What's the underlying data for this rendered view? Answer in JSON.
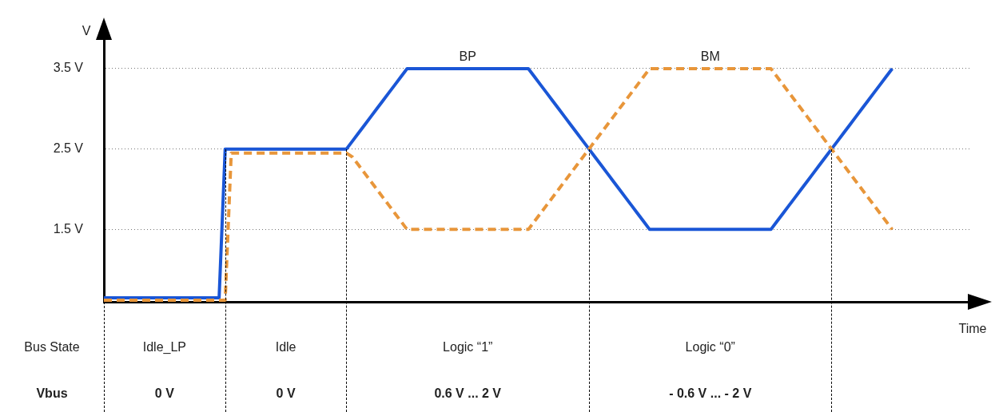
{
  "chart_data": {
    "type": "line",
    "xlabel": "Time",
    "ylabel": "V",
    "categories": [
      null,
      null,
      null,
      null,
      null,
      null,
      null,
      null,
      null,
      null,
      null,
      null,
      null,
      null,
      null,
      null,
      null,
      null,
      null,
      null,
      null,
      null,
      null,
      null,
      null,
      null,
      null,
      null,
      null,
      null,
      null,
      null,
      null,
      null,
      null,
      null,
      null,
      null,
      null,
      null,
      null,
      null,
      null,
      null,
      null,
      null,
      null,
      null,
      null,
      null,
      null,
      null,
      null,
      null,
      null,
      null,
      null,
      null,
      null,
      null,
      null,
      null,
      null,
      null,
      null,
      null,
      null,
      null,
      null,
      null,
      null,
      null,
      null,
      null,
      null,
      null,
      null,
      null,
      null,
      null,
      null,
      null,
      null,
      null,
      null,
      null,
      null,
      null,
      null,
      null,
      null,
      null,
      null,
      null,
      null,
      null,
      null,
      null,
      null,
      null,
      null,
      null,
      null,
      null,
      null,
      null,
      null,
      null,
      null,
      null,
      null,
      null,
      null,
      null,
      null,
      null,
      null,
      null,
      null,
      null,
      null,
      null,
      null,
      null,
      null,
      null,
      null,
      null,
      null,
      null,
      null,
      null,
      null,
      null,
      null,
      null,
      null,
      null,
      null,
      null,
      null,
      null,
      null,
      null
    ],
    "series": [
      {
        "name": "BP",
        "color": "#1a56d6",
        "line_style": "solid",
        "values": [
          0.65,
          0.65,
          0.65,
          0.65,
          0.65,
          0.65,
          0.65,
          0.65,
          0.65,
          0.65,
          0.65,
          0.65,
          0.65,
          0.65,
          0.65,
          0.65,
          0.65,
          0.65,
          0.65,
          0.65,
          2.5,
          2.5,
          2.5,
          2.5,
          2.5,
          2.5,
          2.5,
          2.5,
          2.5,
          2.5,
          2.5,
          2.5,
          2.5,
          2.5,
          2.5,
          2.5,
          2.5,
          2.5,
          2.5,
          2.5,
          2.5,
          2.6,
          2.7,
          2.8,
          2.9,
          3.0,
          3.1,
          3.2,
          3.3,
          3.4,
          3.5,
          3.5,
          3.5,
          3.5,
          3.5,
          3.5,
          3.5,
          3.5,
          3.5,
          3.5,
          3.5,
          3.5,
          3.5,
          3.5,
          3.5,
          3.5,
          3.5,
          3.5,
          3.5,
          3.5,
          3.5,
          3.4,
          3.3,
          3.2,
          3.1,
          3.0,
          2.9,
          2.8,
          2.7,
          2.6,
          2.5,
          2.4,
          2.3,
          2.2,
          2.1,
          2.0,
          1.9,
          1.8,
          1.7,
          1.6,
          1.5,
          1.5,
          1.5,
          1.5,
          1.5,
          1.5,
          1.5,
          1.5,
          1.5,
          1.5,
          1.5,
          1.5,
          1.5,
          1.5,
          1.5,
          1.5,
          1.5,
          1.5,
          1.5,
          1.5,
          1.5,
          1.6,
          1.7,
          1.8,
          1.9,
          2.0,
          2.1,
          2.2,
          2.3,
          2.4,
          2.5,
          2.6,
          2.7,
          2.8,
          2.9,
          3.0,
          3.1,
          3.2,
          3.3,
          3.4,
          3.5,
          null,
          null,
          null,
          null,
          null,
          null,
          null,
          null,
          null,
          null,
          null,
          null,
          null
        ]
      },
      {
        "name": "BM",
        "color": "#e8963a",
        "line_style": "dashed",
        "values": [
          0.62,
          0.62,
          0.62,
          0.62,
          0.62,
          0.62,
          0.62,
          0.62,
          0.62,
          0.62,
          0.62,
          0.62,
          0.62,
          0.62,
          0.62,
          0.62,
          0.62,
          0.62,
          0.62,
          0.62,
          0.62,
          2.45,
          2.45,
          2.45,
          2.45,
          2.45,
          2.45,
          2.45,
          2.45,
          2.45,
          2.45,
          2.45,
          2.45,
          2.45,
          2.45,
          2.45,
          2.45,
          2.45,
          2.45,
          2.45,
          2.45,
          2.4,
          2.3,
          2.2,
          2.1,
          2.0,
          1.9,
          1.8,
          1.7,
          1.6,
          1.5,
          1.5,
          1.5,
          1.5,
          1.5,
          1.5,
          1.5,
          1.5,
          1.5,
          1.5,
          1.5,
          1.5,
          1.5,
          1.5,
          1.5,
          1.5,
          1.5,
          1.5,
          1.5,
          1.5,
          1.5,
          1.6,
          1.7,
          1.8,
          1.9,
          2.0,
          2.1,
          2.2,
          2.3,
          2.4,
          2.5,
          2.6,
          2.7,
          2.8,
          2.9,
          3.0,
          3.1,
          3.2,
          3.3,
          3.4,
          3.5,
          3.5,
          3.5,
          3.5,
          3.5,
          3.5,
          3.5,
          3.5,
          3.5,
          3.5,
          3.5,
          3.5,
          3.5,
          3.5,
          3.5,
          3.5,
          3.5,
          3.5,
          3.5,
          3.5,
          3.5,
          3.4,
          3.3,
          3.2,
          3.1,
          3.0,
          2.9,
          2.8,
          2.7,
          2.6,
          2.5,
          2.4,
          2.3,
          2.2,
          2.1,
          2.0,
          1.9,
          1.8,
          1.7,
          1.6,
          1.5,
          null,
          null,
          null,
          null,
          null,
          null,
          null,
          null,
          null,
          null,
          null,
          null,
          null
        ]
      }
    ],
    "ylim": [
      0.6,
      4.0
    ],
    "yticks": [
      {
        "value": 1.5,
        "label": "1.5 V"
      },
      {
        "value": 2.5,
        "label": "2.5 V"
      },
      {
        "value": 3.5,
        "label": "3.5 V"
      }
    ],
    "tick_labels": "y",
    "grid": "y",
    "legend": false,
    "marker": "none",
    "annotations": [
      "Bus State",
      "Idle_LP",
      "Idle",
      "Logic “1”",
      "Logic “0”",
      "Vbus",
      "0 V",
      "0 V",
      "0.6 V ... 2 V",
      "- 0.6 V ... - 2 V"
    ]
  }
}
